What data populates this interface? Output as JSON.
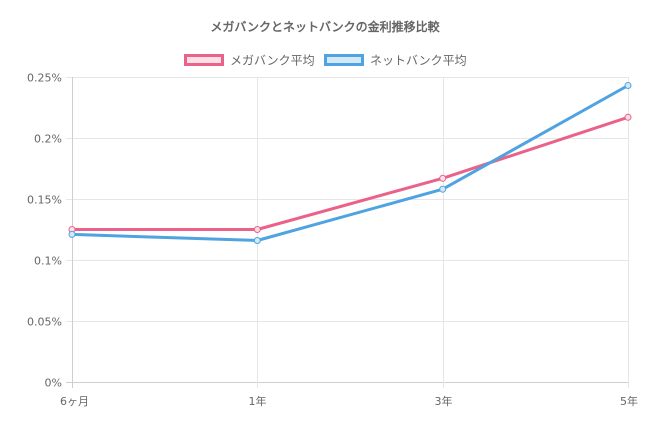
{
  "chart_data": {
    "type": "line",
    "title": "メガバンクとネットバンクの金利推移比較",
    "categories": [
      "6ヶ月",
      "1年",
      "3年",
      "5年"
    ],
    "y_ticks": [
      "0%",
      "0.05%",
      "0.1%",
      "0.15%",
      "0.2%",
      "0.25%"
    ],
    "y_tick_values": [
      0,
      0.05,
      0.1,
      0.15,
      0.2,
      0.25
    ],
    "ylim": [
      0,
      0.25
    ],
    "grid": true,
    "legend_position": "top-center",
    "series": [
      {
        "name": "メガバンク平均",
        "values": [
          0.125,
          0.125,
          0.167,
          0.217
        ],
        "color": "#ea6189",
        "fill": "#fde0e6"
      },
      {
        "name": "ネットバンク平均",
        "values": [
          0.121,
          0.116,
          0.158,
          0.243
        ],
        "color": "#4fa3e0",
        "fill": "#d4e9f8"
      }
    ]
  }
}
